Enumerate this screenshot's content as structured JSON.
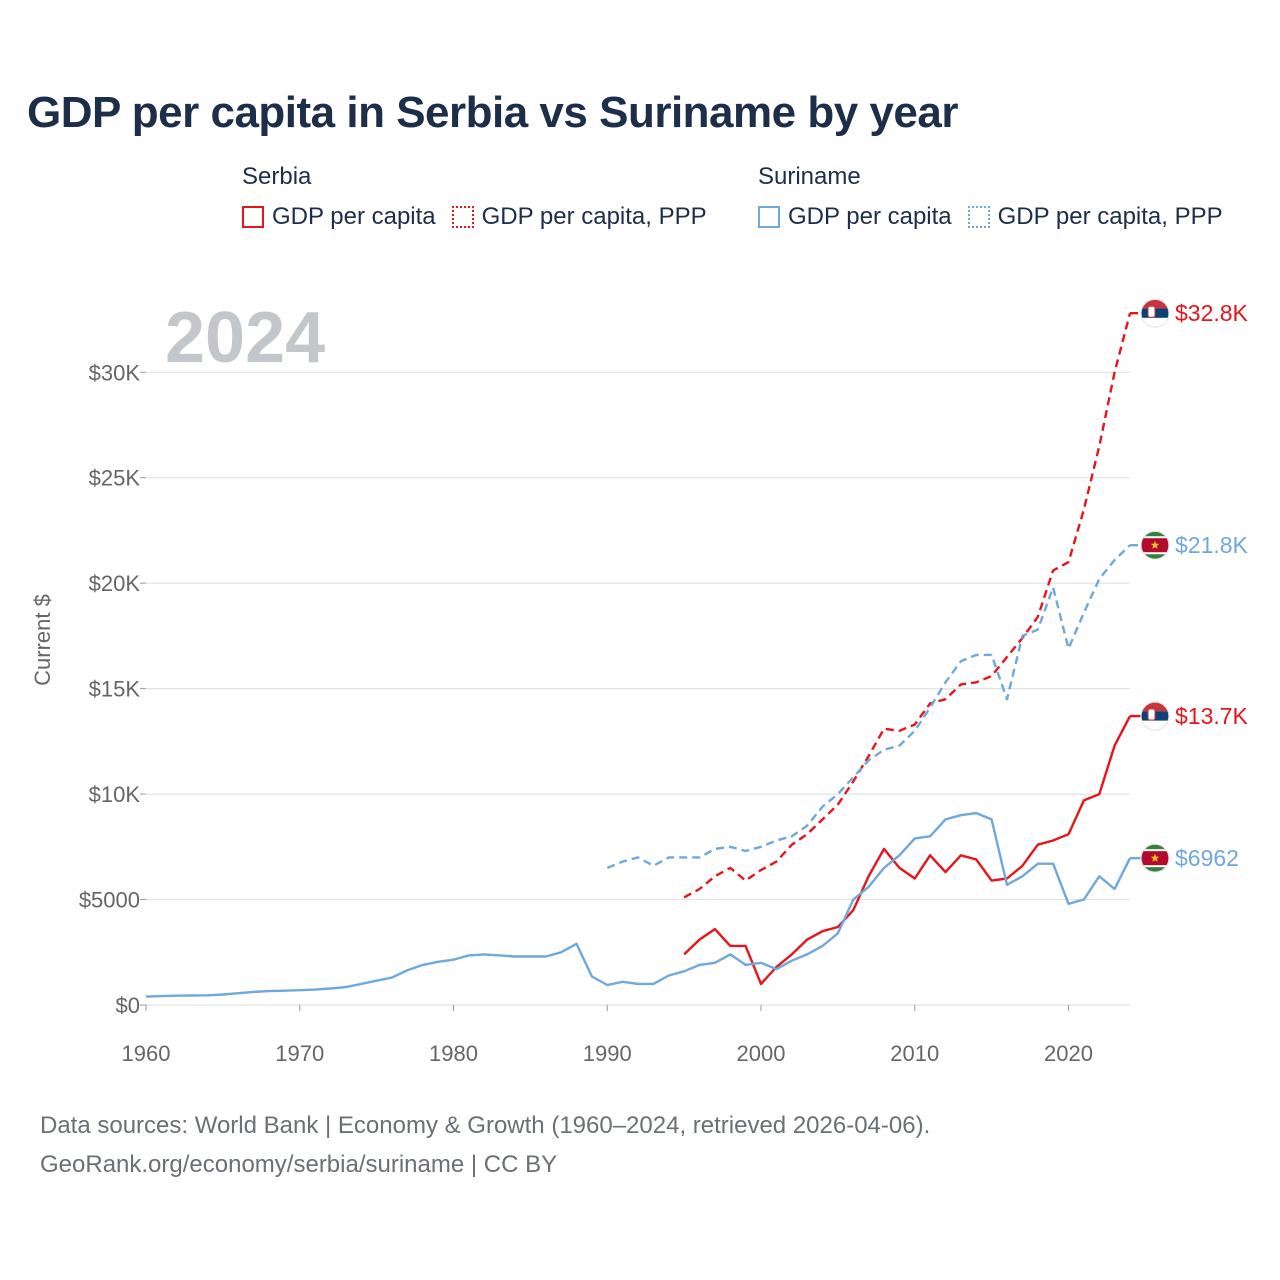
{
  "title": "GDP per capita in Serbia vs Suriname by year",
  "legend": {
    "groups": [
      {
        "name": "Serbia",
        "items": [
          {
            "label": "GDP per capita",
            "color": "#e8141b",
            "style": "solid"
          },
          {
            "label": "GDP per capita, PPP",
            "color": "#e8141b",
            "style": "dotted"
          }
        ]
      },
      {
        "name": "Suriname",
        "items": [
          {
            "label": "GDP per capita",
            "color": "#6fa8dc",
            "style": "solid"
          },
          {
            "label": "GDP per capita, PPP",
            "color": "#6fa8dc",
            "style": "dotted"
          }
        ]
      }
    ]
  },
  "chart_data": {
    "type": "line",
    "year_label": "2024",
    "ylabel": "Current $",
    "xlim": [
      1960,
      2024
    ],
    "ylim": [
      0,
      33000
    ],
    "x_ticks": [
      1960,
      1970,
      1980,
      1990,
      2000,
      2010,
      2020
    ],
    "y_ticks": [
      {
        "value": 0,
        "label": "$0"
      },
      {
        "value": 5000,
        "label": "$5000"
      },
      {
        "value": 10000,
        "label": "$10K"
      },
      {
        "value": 15000,
        "label": "$15K"
      },
      {
        "value": 20000,
        "label": "$20K"
      },
      {
        "value": 25000,
        "label": "$25K"
      },
      {
        "value": 30000,
        "label": "$30K"
      }
    ],
    "series": [
      {
        "name": "Serbia GDP per capita",
        "color": "#e8141b",
        "dashed": false,
        "end_label": "$13.7K",
        "flag": "serbia",
        "x": [
          1995,
          1996,
          1997,
          1998,
          1999,
          2000,
          2001,
          2002,
          2003,
          2004,
          2005,
          2006,
          2007,
          2008,
          2009,
          2010,
          2011,
          2012,
          2013,
          2014,
          2015,
          2016,
          2017,
          2018,
          2019,
          2020,
          2021,
          2022,
          2023,
          2024
        ],
        "y": [
          2400,
          3100,
          3600,
          2800,
          2800,
          1000,
          1800,
          2400,
          3100,
          3500,
          3700,
          4500,
          6100,
          7400,
          6500,
          6000,
          7100,
          6300,
          7100,
          6900,
          5900,
          6000,
          6600,
          7600,
          7800,
          8100,
          9700,
          10000,
          12300,
          13700
        ]
      },
      {
        "name": "Serbia GDP per capita, PPP",
        "color": "#e8141b",
        "dashed": true,
        "end_label": "$32.8K",
        "flag": "serbia",
        "x": [
          1995,
          1996,
          1997,
          1998,
          1999,
          2000,
          2001,
          2002,
          2003,
          2004,
          2005,
          2006,
          2007,
          2008,
          2009,
          2010,
          2011,
          2012,
          2013,
          2014,
          2015,
          2016,
          2017,
          2018,
          2019,
          2020,
          2021,
          2022,
          2023,
          2024
        ],
        "y": [
          5100,
          5500,
          6100,
          6500,
          5900,
          6400,
          6800,
          7600,
          8100,
          8800,
          9500,
          10600,
          11800,
          13100,
          13000,
          13300,
          14300,
          14500,
          15200,
          15300,
          15600,
          16500,
          17400,
          18400,
          20600,
          21000,
          23500,
          26500,
          30000,
          32800
        ]
      },
      {
        "name": "Suriname GDP per capita",
        "color": "#6fa8dc",
        "dashed": false,
        "end_label": "$6962",
        "flag": "suriname",
        "x": [
          1960,
          1961,
          1962,
          1963,
          1964,
          1965,
          1966,
          1967,
          1968,
          1969,
          1970,
          1971,
          1972,
          1973,
          1974,
          1975,
          1976,
          1977,
          1978,
          1979,
          1980,
          1981,
          1982,
          1983,
          1984,
          1985,
          1986,
          1987,
          1988,
          1989,
          1990,
          1991,
          1992,
          1993,
          1994,
          1995,
          1996,
          1997,
          1998,
          1999,
          2000,
          2001,
          2002,
          2003,
          2004,
          2005,
          2006,
          2007,
          2008,
          2009,
          2010,
          2011,
          2012,
          2013,
          2014,
          2015,
          2016,
          2017,
          2018,
          2019,
          2020,
          2021,
          2022,
          2023,
          2024
        ],
        "y": [
          400,
          420,
          440,
          450,
          460,
          500,
          560,
          620,
          660,
          680,
          700,
          730,
          780,
          850,
          1000,
          1150,
          1300,
          1650,
          1900,
          2050,
          2150,
          2350,
          2400,
          2350,
          2300,
          2300,
          2300,
          2500,
          2900,
          1350,
          950,
          1100,
          1000,
          1000,
          1400,
          1600,
          1900,
          2000,
          2400,
          1900,
          2000,
          1700,
          2100,
          2400,
          2800,
          3400,
          5000,
          5600,
          6500,
          7100,
          7900,
          8000,
          8800,
          9000,
          9100,
          8800,
          5700,
          6100,
          6700,
          6700,
          4800,
          5000,
          6100,
          5500,
          6962
        ]
      },
      {
        "name": "Suriname GDP per capita, PPP",
        "color": "#6fa8dc",
        "dashed": true,
        "end_label": "$21.8K",
        "flag": "suriname",
        "x": [
          1990,
          1991,
          1992,
          1993,
          1994,
          1995,
          1996,
          1997,
          1998,
          1999,
          2000,
          2001,
          2002,
          2003,
          2004,
          2005,
          2006,
          2007,
          2008,
          2009,
          2010,
          2011,
          2012,
          2013,
          2014,
          2015,
          2016,
          2017,
          2018,
          2019,
          2020,
          2021,
          2022,
          2023,
          2024
        ],
        "y": [
          6500,
          6800,
          7000,
          6600,
          7000,
          7000,
          7000,
          7400,
          7500,
          7300,
          7500,
          7800,
          8000,
          8500,
          9400,
          10000,
          10800,
          11600,
          12100,
          12300,
          13000,
          14100,
          15300,
          16300,
          16600,
          16600,
          14500,
          17500,
          17800,
          19800,
          16900,
          18600,
          20200,
          21100,
          21800
        ]
      }
    ]
  },
  "source_lines": [
    "Data sources: World Bank | Economy & Growth (1960–2024, retrieved 2026-04-06).",
    "GeoRank.org/economy/serbia/suriname | CC BY"
  ]
}
